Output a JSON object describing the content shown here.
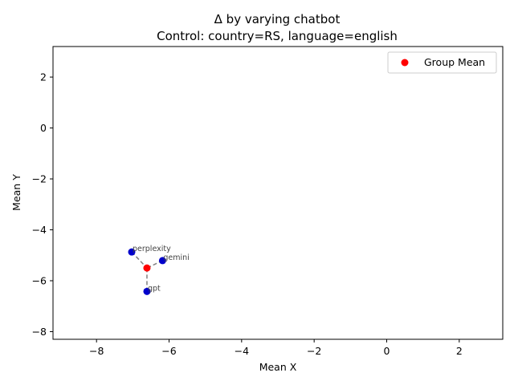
{
  "chart_data": {
    "type": "scatter",
    "title": "Δ by varying chatbot",
    "subtitle": "Control: country=RS, language=english",
    "xlabel": "Mean X",
    "ylabel": "Mean Y",
    "xlim": [
      -9.2,
      3.2
    ],
    "ylim": [
      -8.3,
      3.2
    ],
    "xticks": [
      -8,
      -6,
      -4,
      -2,
      0,
      2
    ],
    "yticks": [
      2,
      0,
      -2,
      -4,
      -6,
      -8
    ],
    "xtick_labels": [
      "−8",
      "−6",
      "−4",
      "−2",
      "0",
      "2"
    ],
    "ytick_labels": [
      "2",
      "0",
      "−2",
      "−4",
      "−6",
      "−8"
    ],
    "grid": false,
    "legend_position": "top-right",
    "points": [
      {
        "label": "perplexity",
        "x": -7.03,
        "y": -4.87
      },
      {
        "label": "gemini",
        "x": -6.18,
        "y": -5.21
      },
      {
        "label": "gpt",
        "x": -6.61,
        "y": -6.42
      }
    ],
    "group_mean": {
      "name": "Group Mean",
      "x": -6.61,
      "y": -5.5
    },
    "colors": {
      "points": "#0000cc",
      "group_mean": "#ff0000",
      "connector": "#808080"
    }
  }
}
